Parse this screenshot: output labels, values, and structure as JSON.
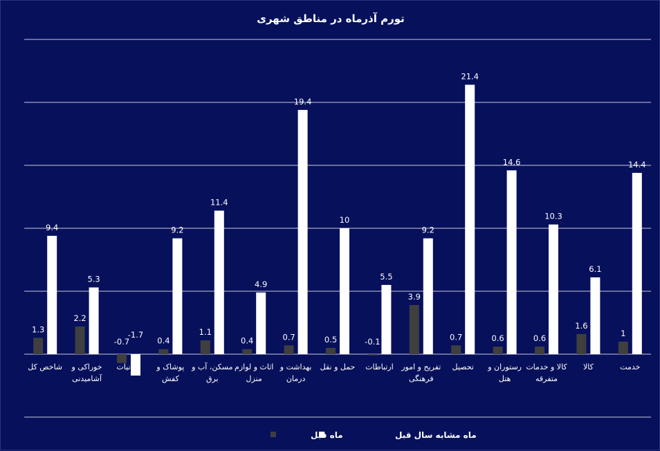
{
  "chart_data": {
    "type": "bar",
    "title": "تورم آذرماه در مناطق شهری",
    "categories": [
      "شاخص کل",
      "خوراکی و آشامیدنی",
      "دخانیات",
      "پوشاک و کفش",
      "مسکن، آب و برق",
      "اثاث و لوازم منزل",
      "بهداشت و درمان",
      "حمل و نقل",
      "ارتباطات",
      "تفریح و امور فرهنگی",
      "تحصیل",
      "رستوران و هتل",
      "کالا و خدمات متفرقه",
      "کالا",
      "خدمت"
    ],
    "category_lines": [
      [
        "شاخص کل"
      ],
      [
        "خوراکی و",
        "آشامیدنی"
      ],
      [
        "دخانیات"
      ],
      [
        "پوشاک و",
        "کفش"
      ],
      [
        "مسکن، آب و",
        "برق"
      ],
      [
        "اثاث و لوازم",
        "منزل"
      ],
      [
        "بهداشت و",
        "درمان"
      ],
      [
        "حمل و نقل"
      ],
      [
        "ارتباطات"
      ],
      [
        "تفریح و امور",
        "فرهنگی"
      ],
      [
        "تحصیل"
      ],
      [
        "رستوران و",
        "هتل"
      ],
      [
        "کالا و خدمات",
        "متفرقه"
      ],
      [
        "کالا"
      ],
      [
        "خدمت"
      ]
    ],
    "series": [
      {
        "name": "ماه قبل",
        "color": "#3f3f3f",
        "values": [
          1.3,
          2.2,
          -0.7,
          0.4,
          1.1,
          0.4,
          0.7,
          0.5,
          -0.1,
          3.9,
          0.7,
          0.6,
          0.6,
          1.6,
          1
        ],
        "labels": [
          "1.3",
          "2.2",
          "-0.7",
          "0.4",
          "1.1",
          "0.4",
          "0.7",
          "0.5",
          "-0.1",
          "3.9",
          "0.7",
          "0.6",
          "0.6",
          "1.6",
          "1"
        ]
      },
      {
        "name": "ماه مشابه سال قبل",
        "color": "#ffffff",
        "values": [
          9.4,
          5.3,
          -1.7,
          9.2,
          11.4,
          4.9,
          19.4,
          10,
          5.5,
          9.2,
          21.4,
          14.6,
          10.3,
          6.1,
          14.4
        ],
        "labels": [
          "9.4",
          "5.3",
          "-1.7",
          "9.2",
          "11.4",
          "4.9",
          "19.4",
          "10",
          "5.5",
          "9.2",
          "21.4",
          "14.6",
          "10.3",
          "6.1",
          "14.4"
        ]
      }
    ],
    "yticks": [
      "25",
      "20",
      "15",
      "10",
      "5",
      "0",
      "-5"
    ],
    "ylim": [
      -5,
      25
    ],
    "grid": true,
    "legend_position": "bottom",
    "xlabel": "",
    "ylabel": ""
  }
}
